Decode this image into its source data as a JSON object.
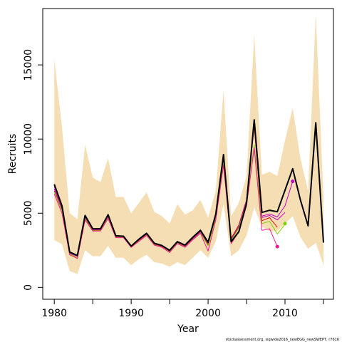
{
  "chart_data": {
    "type": "line",
    "xlabel": "Year",
    "ylabel": "Recruits",
    "footnote": "stockassessment.org, sigwide2016_newEGG_newSWEPT, r7616",
    "xlim": [
      1978.5,
      2016.3
    ],
    "ylim": [
      -800,
      18800
    ],
    "x_ticks": [
      1980,
      1990,
      2000,
      2010
    ],
    "y_ticks": [
      0,
      5000,
      10000,
      15000
    ],
    "grid": false,
    "colors": {
      "band": "#f5deb3",
      "main": "#000000",
      "retro_pink": "#ff1493",
      "retro_purple": "#c000c0",
      "retro_green": "#7fd000",
      "retro_red": "#d40000"
    },
    "band": {
      "x": [
        1980,
        1981,
        1982,
        1983,
        1984,
        1985,
        1986,
        1987,
        1988,
        1989,
        1990,
        1991,
        1992,
        1993,
        1994,
        1995,
        1996,
        1997,
        1998,
        1999,
        2000,
        2001,
        2002,
        2003,
        2004,
        2005,
        2006,
        2007,
        2008,
        2009,
        2010,
        2011,
        2012,
        2013,
        2014,
        2015
      ],
      "upper": [
        15400,
        10800,
        5000,
        4600,
        9600,
        7400,
        7100,
        8700,
        6100,
        6100,
        5000,
        5700,
        6400,
        5100,
        4800,
        4300,
        5600,
        4900,
        5200,
        5900,
        4700,
        6500,
        13300,
        4800,
        5700,
        7500,
        17000,
        7600,
        7800,
        7500,
        9900,
        12100,
        8700,
        6500,
        18400,
        6100
      ],
      "lower": [
        3200,
        2900,
        1100,
        900,
        2500,
        2100,
        2100,
        2800,
        2000,
        2000,
        1500,
        1900,
        2200,
        1700,
        1600,
        1400,
        1700,
        1500,
        2000,
        2500,
        2000,
        3100,
        5600,
        2100,
        2500,
        3500,
        5400,
        4100,
        3800,
        3800,
        4300,
        4800,
        3400,
        2600,
        3000,
        1500
      ]
    },
    "series": [
      {
        "x": [
          1980,
          1981,
          1982,
          1983,
          1984,
          1985,
          1986,
          1987,
          1988,
          1989,
          1990,
          1991,
          1992,
          1993,
          1994,
          1995,
          1996,
          1997,
          1998,
          1999,
          2000,
          2001,
          2002,
          2003,
          2004,
          2005,
          2006,
          2007,
          2008,
          2009,
          2010,
          2011,
          2012,
          2013,
          2014,
          2015
        ],
        "values": [
          6950,
          5500,
          2380,
          2150,
          4850,
          3950,
          3950,
          4900,
          3480,
          3450,
          2780,
          3250,
          3650,
          2980,
          2820,
          2500,
          3080,
          2850,
          3380,
          3850,
          3050,
          4950,
          8950,
          3080,
          3750,
          5650,
          11300,
          5050,
          5200,
          5100,
          6550,
          8000,
          5900,
          4150,
          11100,
          3020
        ]
      },
      {
        "x": [
          1980,
          1981,
          1982,
          1983,
          1984,
          1985,
          1986,
          1987,
          1988,
          1989,
          1990,
          1991,
          1992,
          1993,
          1994,
          1995,
          1996,
          1997,
          1998,
          1999,
          2000,
          2001,
          2002,
          2003,
          2004,
          2005,
          2006,
          2007,
          2008,
          2009
        ],
        "values": [
          6500,
          5200,
          2250,
          2000,
          4650,
          3850,
          3850,
          4700,
          3400,
          3400,
          2750,
          3150,
          3550,
          2900,
          2750,
          2400,
          3000,
          2750,
          3250,
          3700,
          2850,
          4700,
          8600,
          3300,
          4200,
          5900,
          10900,
          4500,
          4700,
          4050
        ]
      },
      {
        "x": [
          1980,
          1981,
          1982,
          1983,
          1984,
          1985,
          1986,
          1987,
          1988,
          1989,
          1990,
          1991,
          1992,
          1993,
          1994,
          1995,
          1996,
          1997,
          1998,
          1999,
          2000,
          2001,
          2002,
          2003,
          2004,
          2005,
          2006,
          2007,
          2008,
          2009,
          2010
        ],
        "values": [
          6650,
          5300,
          2300,
          2100,
          4750,
          3900,
          3900,
          4800,
          3450,
          3420,
          2770,
          3200,
          3600,
          2950,
          2780,
          2450,
          3050,
          2800,
          3300,
          3750,
          2950,
          4800,
          8750,
          3200,
          4100,
          5850,
          11000,
          4700,
          4850,
          4550,
          5050
        ]
      },
      {
        "x": [
          1980,
          1981,
          1982,
          1983,
          1984,
          1985,
          1986,
          1987,
          1988,
          1989,
          1990,
          1991,
          1992,
          1993,
          1994,
          1995,
          1996,
          1997,
          1998,
          1999,
          2000,
          2001,
          2002,
          2003,
          2004,
          2005,
          2006,
          2007,
          2008,
          2009,
          2010
        ],
        "values": [
          6450,
          5150,
          2250,
          2000,
          4620,
          3820,
          3820,
          4680,
          3380,
          3380,
          2720,
          3120,
          3520,
          2870,
          2720,
          2380,
          2980,
          2720,
          3220,
          3680,
          2800,
          4650,
          8500,
          3150,
          4000,
          5700,
          9600,
          4300,
          4450,
          3600,
          4250
        ]
      },
      {
        "x": [
          1980,
          1981,
          1982,
          1983,
          1984,
          1985,
          1986,
          1987,
          1988,
          1989,
          1990,
          1991,
          1992,
          1993,
          1994,
          1995,
          1996,
          1997,
          1998,
          1999,
          2000,
          2001,
          2002,
          2003,
          2004,
          2005,
          2006,
          2007,
          2008,
          2009
        ],
        "values": [
          6300,
          5000,
          2200,
          1950,
          4550,
          3800,
          3800,
          4650,
          3350,
          3350,
          2700,
          3100,
          3500,
          2850,
          2700,
          2350,
          2950,
          2700,
          3200,
          3650,
          2450,
          4550,
          8250,
          2950,
          3750,
          5500,
          9400,
          3850,
          3950,
          2750
        ]
      },
      {
        "x": [
          1980,
          1981,
          1982,
          1983,
          1984,
          1985,
          1986,
          1987,
          1988,
          1989,
          1990,
          1991,
          1992,
          1993,
          1994,
          1995,
          1996,
          1997,
          1998,
          1999,
          2000,
          2001,
          2002,
          2003,
          2004,
          2005,
          2006,
          2007,
          2008,
          2009,
          2010,
          2011
        ],
        "values": [
          6800,
          5400,
          2340,
          2120,
          4800,
          3930,
          3930,
          4850,
          3460,
          3440,
          2780,
          3230,
          3630,
          2970,
          2810,
          2480,
          3070,
          2830,
          3360,
          3800,
          3000,
          4900,
          8900,
          3100,
          3800,
          5700,
          11200,
          4800,
          4950,
          4750,
          5500,
          7150
        ]
      }
    ],
    "endpoints": [
      {
        "x": 2009,
        "value": 2750
      },
      {
        "x": 2010,
        "value": 4300
      },
      {
        "x": 2011,
        "value": 7150
      }
    ]
  }
}
